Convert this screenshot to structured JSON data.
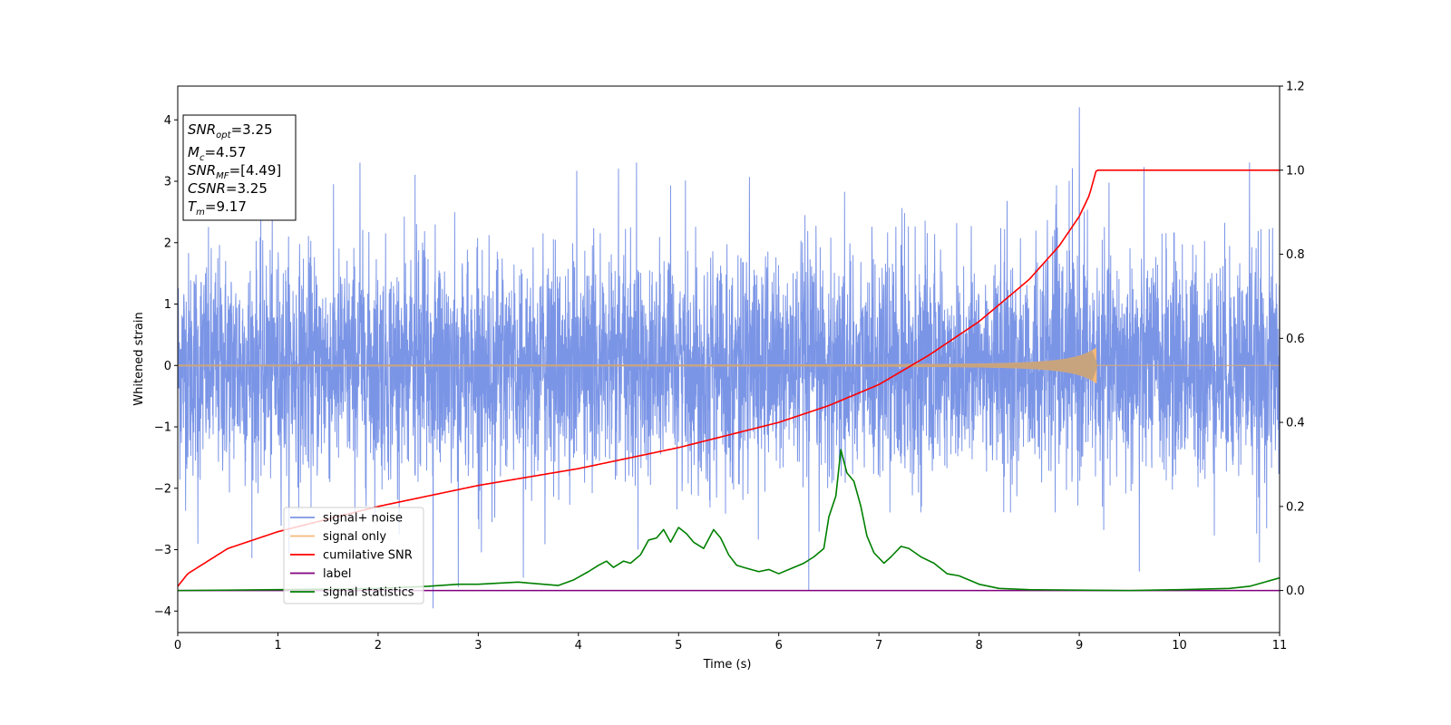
{
  "chart_data": {
    "type": "line",
    "xlabel": "Time (s)",
    "ylabel": "Whitened strain",
    "xlim": [
      0,
      11
    ],
    "ylim_left": [
      -4.35,
      4.55
    ],
    "ylim_right": [
      -0.1,
      1.2
    ],
    "x_ticks": [
      "0",
      "1",
      "2",
      "3",
      "4",
      "5",
      "6",
      "7",
      "8",
      "9",
      "10",
      "11"
    ],
    "y_left_ticks": [
      "−4",
      "−3",
      "−2",
      "−1",
      "0",
      "1",
      "2",
      "3",
      "4"
    ],
    "y_right_ticks": [
      "0.0",
      "0.2",
      "0.4",
      "0.6",
      "0.8",
      "1.0",
      "1.2"
    ],
    "grid": false,
    "legend_placement": "lower-left",
    "info_box": {
      "snr_opt": {
        "base": "SNR",
        "sub": "opt",
        "value": "=3.25"
      },
      "mc": {
        "base": "M",
        "sub": "c",
        "value": "=4.57"
      },
      "snr_mf": {
        "base": "SNR",
        "sub": "MF",
        "value": "=[4.49]"
      },
      "csnr": {
        "base": "CSNR",
        "value": "=3.25"
      },
      "tm": {
        "base": "T",
        "sub": "m",
        "value": "=9.17"
      }
    },
    "series": [
      {
        "name": "signal+ noise",
        "axis": "left",
        "color": "#7b95e6",
        "description_kind": "noise",
        "envelope_typical": 1.2,
        "extreme_peaks": [
          [
            1.82,
            3.3
          ],
          [
            2.37,
            3.1
          ],
          [
            3.45,
            2.4
          ],
          [
            4.4,
            3.2
          ],
          [
            4.58,
            3.3
          ],
          [
            8.9,
            3.0
          ],
          [
            9.0,
            4.2
          ],
          [
            9.05,
            2.5
          ],
          [
            10.7,
            3.3
          ],
          [
            0.2,
            -2.9
          ],
          [
            2.55,
            -3.95
          ],
          [
            2.8,
            -3.6
          ],
          [
            3.45,
            -3.45
          ],
          [
            6.3,
            -3.65
          ],
          [
            9.6,
            -3.35
          ],
          [
            10.8,
            -3.2
          ]
        ]
      },
      {
        "name": "signal only",
        "axis": "left",
        "color": "#f5b979",
        "description_kind": "chirp",
        "t_merge": 9.17,
        "amplitude_end": 0.28
      },
      {
        "name": "cumilative SNR",
        "axis": "right",
        "color": "#ff0000",
        "x": [
          0,
          0.1,
          0.5,
          1.0,
          2.0,
          3.0,
          4.0,
          5.0,
          6.0,
          6.5,
          7.0,
          7.5,
          8.0,
          8.5,
          8.8,
          9.0,
          9.1,
          9.17,
          11.0
        ],
        "y": [
          0.01,
          0.04,
          0.1,
          0.14,
          0.2,
          0.25,
          0.29,
          0.34,
          0.4,
          0.44,
          0.49,
          0.56,
          0.64,
          0.74,
          0.82,
          0.89,
          0.94,
          1.0,
          1.0
        ]
      },
      {
        "name": "label",
        "axis": "right",
        "color": "#800080",
        "x": [
          0,
          11
        ],
        "y": [
          0.0,
          0.0
        ]
      },
      {
        "name": "signal statistics",
        "axis": "right",
        "color": "#008000",
        "x": [
          0,
          1.0,
          2.0,
          2.5,
          2.8,
          3.0,
          3.4,
          3.5,
          3.8,
          3.95,
          4.1,
          4.2,
          4.28,
          4.35,
          4.45,
          4.52,
          4.62,
          4.7,
          4.78,
          4.85,
          4.92,
          5.0,
          5.08,
          5.15,
          5.25,
          5.35,
          5.42,
          5.5,
          5.58,
          5.65,
          5.8,
          5.9,
          6.0,
          6.15,
          6.25,
          6.35,
          6.45,
          6.5,
          6.57,
          6.62,
          6.68,
          6.75,
          6.82,
          6.88,
          6.95,
          7.05,
          7.12,
          7.22,
          7.3,
          7.42,
          7.55,
          7.68,
          7.8,
          7.9,
          8.0,
          8.2,
          8.5,
          9.0,
          9.5,
          10.0,
          10.5,
          10.7,
          10.85,
          11.0
        ],
        "y": [
          0.0,
          0.002,
          0.005,
          0.01,
          0.015,
          0.015,
          0.02,
          0.018,
          0.012,
          0.025,
          0.045,
          0.06,
          0.07,
          0.055,
          0.07,
          0.065,
          0.085,
          0.12,
          0.125,
          0.145,
          0.115,
          0.15,
          0.135,
          0.115,
          0.1,
          0.145,
          0.125,
          0.085,
          0.06,
          0.055,
          0.045,
          0.05,
          0.04,
          0.055,
          0.065,
          0.08,
          0.1,
          0.175,
          0.225,
          0.335,
          0.28,
          0.26,
          0.2,
          0.13,
          0.09,
          0.065,
          0.08,
          0.105,
          0.1,
          0.08,
          0.065,
          0.04,
          0.035,
          0.025,
          0.015,
          0.005,
          0.002,
          0.001,
          0.0,
          0.002,
          0.005,
          0.01,
          0.02,
          0.03
        ]
      }
    ]
  }
}
